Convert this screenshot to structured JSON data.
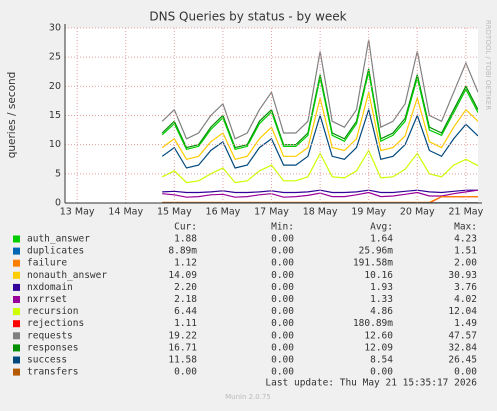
{
  "chart_data": {
    "type": "line",
    "title": "DNS Queries by status - by week",
    "ylabel": "queries / second",
    "side_label": "RRDTOOL / TOBI OETIKER",
    "xlim": [
      -0.25,
      8.25
    ],
    "xticks": [
      {
        "value": 0,
        "label": "13 May"
      },
      {
        "value": 1,
        "label": "14 May"
      },
      {
        "value": 2,
        "label": "15 May"
      },
      {
        "value": 3,
        "label": "16 May"
      },
      {
        "value": 4,
        "label": "17 May"
      },
      {
        "value": 5,
        "label": "18 May"
      },
      {
        "value": 6,
        "label": "19 May"
      },
      {
        "value": 7,
        "label": "20 May"
      },
      {
        "value": 8,
        "label": "21 May"
      }
    ],
    "ylim": [
      0,
      30
    ],
    "yticks": [
      0,
      5,
      10,
      15,
      20,
      25,
      30
    ],
    "grid": true,
    "x": [
      1.75,
      2.0,
      2.25,
      2.5,
      2.75,
      3.0,
      3.25,
      3.5,
      3.75,
      4.0,
      4.25,
      4.5,
      4.75,
      5.0,
      5.25,
      5.5,
      5.75,
      6.0,
      6.25,
      6.5,
      6.75,
      7.0,
      7.25,
      7.5,
      7.75,
      8.0,
      8.25
    ],
    "stat_headers": [
      "Cur:",
      "Min:",
      "Avg:",
      "Max:"
    ],
    "series": [
      {
        "name": "requests",
        "color": "#808080",
        "cur": "19.22",
        "min": "0.00",
        "avg": "12.60",
        "max": "47.57",
        "values": [
          14,
          16,
          11,
          12,
          15,
          17,
          11,
          12,
          16,
          19,
          12,
          12,
          14,
          26,
          14,
          13,
          16,
          28,
          13,
          14,
          17,
          26,
          15,
          14,
          19,
          24,
          19
        ]
      },
      {
        "name": "responses",
        "color": "#008f00",
        "cur": "16.71",
        "min": "0.00",
        "avg": "12.09",
        "max": "32.84",
        "values": [
          12,
          14,
          9.5,
          10,
          13,
          15,
          9.5,
          10,
          14,
          16,
          10,
          10,
          12,
          22,
          12,
          11,
          14,
          23,
          11,
          12,
          14.5,
          22,
          13,
          12,
          16,
          20,
          16
        ]
      },
      {
        "name": "auth_answer",
        "color": "#00cc00",
        "cur": "1.88",
        "min": "0.00",
        "avg": "1.64",
        "max": "4.23",
        "values": [
          11.7,
          13.6,
          9.2,
          9.7,
          12.6,
          14.6,
          9.2,
          9.7,
          13.6,
          15.6,
          9.7,
          9.7,
          11.6,
          21.5,
          11.6,
          10.6,
          13.6,
          22.5,
          10.6,
          11.6,
          14,
          21.5,
          12.5,
          11.6,
          15.5,
          19.5,
          15.5
        ]
      },
      {
        "name": "nonauth_answer",
        "color": "#ffcc00",
        "cur": "14.09",
        "min": "0.00",
        "avg": "10.16",
        "max": "30.93",
        "values": [
          9.5,
          11,
          7.5,
          8,
          10.5,
          12,
          7.5,
          8,
          11,
          13,
          8,
          8,
          9.5,
          18,
          9.5,
          9,
          11,
          19,
          9,
          9.5,
          11.5,
          18,
          10.5,
          9.5,
          13,
          16,
          14
        ]
      },
      {
        "name": "success",
        "color": "#00487d",
        "cur": "11.58",
        "min": "0.00",
        "avg": "8.54",
        "max": "26.45",
        "values": [
          8,
          9.5,
          6,
          6.5,
          9,
          10.5,
          6,
          6.5,
          9.5,
          11,
          6.5,
          6.5,
          8,
          15,
          8,
          7.5,
          9.5,
          16,
          7.5,
          8,
          10,
          15,
          9,
          8,
          11,
          13.5,
          11.5
        ]
      },
      {
        "name": "recursion",
        "color": "#ccff00",
        "cur": "6.44",
        "min": "0.00",
        "avg": "4.86",
        "max": "12.04",
        "values": [
          4.5,
          5.5,
          3.5,
          3.8,
          5,
          6,
          3.5,
          3.8,
          5.5,
          6.5,
          3.8,
          3.8,
          4.5,
          8.5,
          4.5,
          4.3,
          5.5,
          9,
          4.3,
          4.5,
          5.8,
          8.5,
          5,
          4.5,
          6.5,
          7.5,
          6.4
        ]
      },
      {
        "name": "nxdomain",
        "color": "#330099",
        "cur": "2.20",
        "min": "0.00",
        "avg": "1.93",
        "max": "3.76",
        "values": [
          1.9,
          2.0,
          1.8,
          1.8,
          1.9,
          2.1,
          1.8,
          1.8,
          1.9,
          2.1,
          1.8,
          1.8,
          1.9,
          2.2,
          1.8,
          1.8,
          1.9,
          2.2,
          1.8,
          1.8,
          2.0,
          2.2,
          1.9,
          1.8,
          2.0,
          2.2,
          2.2
        ]
      },
      {
        "name": "nxrrset",
        "color": "#990099",
        "cur": "2.18",
        "min": "0.00",
        "avg": "1.33",
        "max": "4.02",
        "values": [
          1.6,
          1.4,
          1.0,
          1.1,
          1.4,
          1.5,
          1.0,
          1.1,
          1.4,
          1.6,
          1.0,
          1.1,
          1.3,
          1.7,
          1.1,
          1.1,
          1.4,
          1.8,
          1.1,
          1.2,
          1.5,
          1.8,
          1.2,
          1.2,
          1.6,
          1.9,
          2.2
        ]
      },
      {
        "name": "rejections",
        "color": "#ff0000",
        "cur": "1.11",
        "min": "0.00",
        "avg": "180.89m",
        "max": "1.49",
        "values": [
          0,
          0,
          0,
          0,
          0,
          0,
          0,
          0,
          0,
          0,
          0,
          0,
          0,
          0,
          0,
          0,
          0,
          0,
          0,
          0,
          0,
          0,
          0,
          1.1,
          1.1,
          1.1,
          1.1
        ]
      },
      {
        "name": "failure",
        "color": "#ff8000",
        "cur": "1.12",
        "min": "0.00",
        "avg": "191.58m",
        "max": "2.00",
        "values": [
          0.1,
          0.1,
          0.1,
          0.1,
          0.1,
          0.1,
          0.1,
          0.1,
          0.1,
          0.1,
          0.1,
          0.1,
          0.1,
          0.1,
          0.1,
          0.1,
          0.1,
          0.1,
          0.1,
          0.1,
          0.1,
          0.1,
          0.1,
          1.1,
          1.1,
          1.1,
          1.1
        ]
      },
      {
        "name": "duplicates",
        "color": "#0066b3",
        "cur": "8.89m",
        "min": "0.00",
        "avg": "25.96m",
        "max": "1.51",
        "values": [
          0.03,
          0.03,
          0.03,
          0.03,
          0.03,
          0.03,
          0.03,
          0.03,
          0.03,
          0.03,
          0.03,
          0.03,
          0.03,
          0.03,
          0.03,
          0.03,
          0.03,
          0.03,
          0.03,
          0.03,
          0.03,
          0.03,
          0.03,
          0.03,
          0.03,
          0.03,
          0.01
        ]
      },
      {
        "name": "transfers",
        "color": "#b35a00",
        "cur": "0.00",
        "min": "0.00",
        "avg": "0.00",
        "max": "0.00",
        "values": [
          0,
          0,
          0,
          0,
          0,
          0,
          0,
          0,
          0,
          0,
          0,
          0,
          0,
          0,
          0,
          0,
          0,
          0,
          0,
          0,
          0,
          0,
          0,
          0,
          0,
          0,
          0
        ]
      }
    ],
    "legend_order": [
      2,
      10,
      9,
      3,
      6,
      7,
      5,
      8,
      0,
      1,
      4,
      11
    ],
    "last_update": "Last update: Thu May 21 15:35:17 2026",
    "footer": "Munin 2.0.75"
  }
}
